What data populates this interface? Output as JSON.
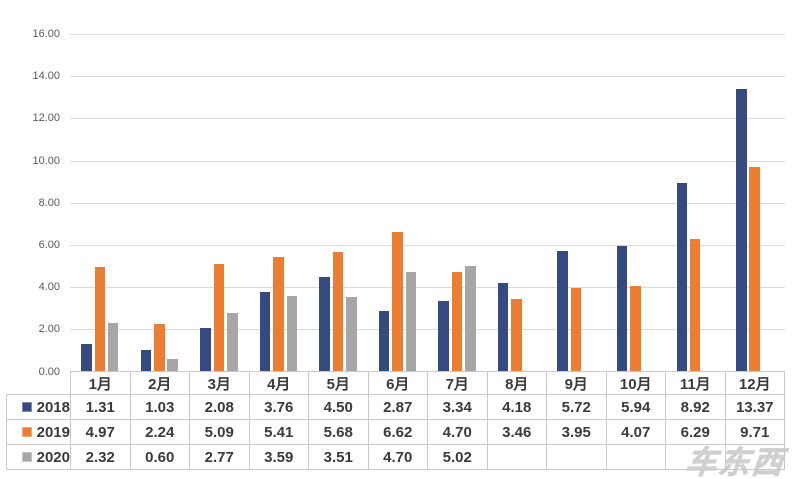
{
  "watermark": {
    "text": "车东西"
  },
  "colors": {
    "gridline": "#d9d9d9",
    "table_border": "#c9c9c9",
    "axis_text": "#595959",
    "table_text": "#3a3a3a",
    "background": "#ffffff"
  },
  "chart_data": {
    "type": "bar",
    "title": "",
    "xlabel": "",
    "ylabel": "",
    "categories": [
      "1月",
      "2月",
      "3月",
      "4月",
      "5月",
      "6月",
      "7月",
      "8月",
      "9月",
      "10月",
      "11月",
      "12月"
    ],
    "series": [
      {
        "name": "2018",
        "color": "#344a80",
        "values": [
          1.31,
          1.03,
          2.08,
          3.76,
          4.5,
          2.87,
          3.34,
          4.18,
          5.72,
          5.94,
          8.92,
          13.37
        ]
      },
      {
        "name": "2019",
        "color": "#ed7d31",
        "values": [
          4.97,
          2.24,
          5.09,
          5.41,
          5.68,
          6.62,
          4.7,
          3.46,
          3.95,
          4.07,
          6.29,
          9.71
        ]
      },
      {
        "name": "2020",
        "color": "#a6a6a6",
        "values": [
          2.32,
          0.6,
          2.77,
          3.59,
          3.51,
          4.7,
          5.02,
          null,
          null,
          null,
          null,
          null
        ]
      }
    ],
    "ylim": [
      0,
      16
    ],
    "ytick_step": 2,
    "yticks": [
      "16.00",
      "14.00",
      "12.00",
      "10.00",
      "8.00",
      "6.00",
      "4.00",
      "2.00",
      "0.00"
    ],
    "grid": true,
    "legend_position": "table-rows-left",
    "value_format": "2-decimals",
    "data_table_shown": true
  }
}
